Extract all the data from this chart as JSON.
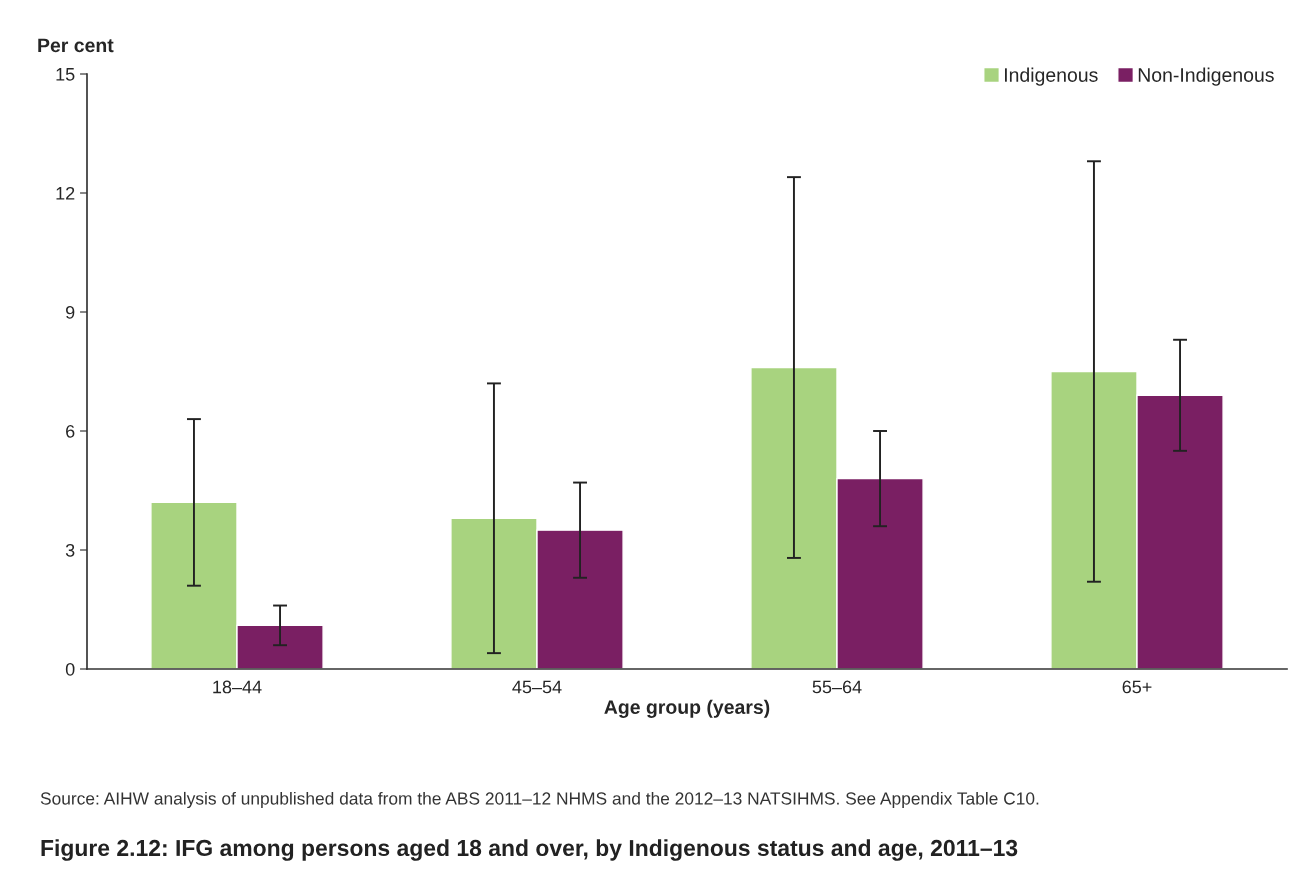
{
  "chart_data": {
    "type": "bar",
    "title": "Figure 2.12: IFG among persons aged 18 and over, by Indigenous status and age, 2011–13",
    "ylabel": "Per cent",
    "xlabel": "Age group (years)",
    "categories": [
      "18–44",
      "45–54",
      "55–64",
      "65+"
    ],
    "series": [
      {
        "name": "Indigenous",
        "color": "#a8d37f",
        "values": [
          4.2,
          3.8,
          7.6,
          7.5
        ],
        "errors": [
          [
            2.1,
            6.3
          ],
          [
            0.4,
            7.2
          ],
          [
            2.8,
            12.4
          ],
          [
            2.2,
            12.8
          ]
        ]
      },
      {
        "name": "Non-Indigenous",
        "color": "#7a1f63",
        "values": [
          1.1,
          3.5,
          4.8,
          6.9
        ],
        "errors": [
          [
            0.6,
            1.6
          ],
          [
            2.3,
            4.7
          ],
          [
            3.6,
            6.0
          ],
          [
            5.5,
            8.3
          ]
        ]
      }
    ],
    "ylim": [
      0,
      15
    ],
    "yticks": [
      0,
      3,
      6,
      9,
      12,
      15
    ],
    "grid": false,
    "legend": "top right",
    "annotations": [
      "Source: AIHW analysis of unpublished data from the ABS 2011–12 NHMS and the 2012–13 NATSIHMS. See Appendix Table C10."
    ]
  }
}
